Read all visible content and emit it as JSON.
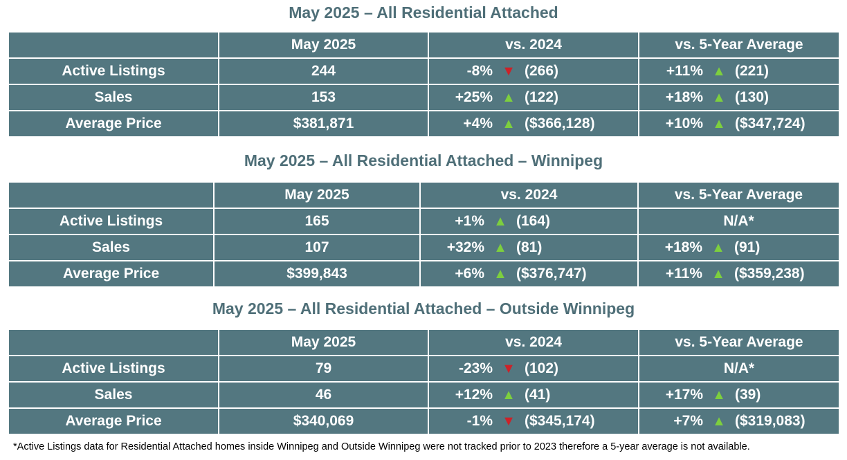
{
  "colors": {
    "up": "#7dcf3e",
    "down": "#cc2229",
    "cell": "#537780",
    "title": "#4f6f78"
  },
  "tables": [
    {
      "title": "May 2025 – All Residential Attached",
      "headers": [
        "",
        "May 2025",
        "vs. 2024",
        "vs. 5-Year Average"
      ],
      "rows": [
        {
          "label": "Active Listings",
          "value": "244",
          "y": {
            "pct": "-8%",
            "dir": "down",
            "prev": "(266)"
          },
          "avg": {
            "pct": "+11%",
            "dir": "up",
            "prev": "(221)"
          }
        },
        {
          "label": "Sales",
          "value": "153",
          "y": {
            "pct": "+25%",
            "dir": "up",
            "prev": "(122)"
          },
          "avg": {
            "pct": "+18%",
            "dir": "up",
            "prev": "(130)"
          }
        },
        {
          "label": "Average Price",
          "value": "$381,871",
          "y": {
            "pct": "+4%",
            "dir": "up",
            "prev": "($366,128)"
          },
          "avg": {
            "pct": "+10%",
            "dir": "up",
            "prev": "($347,724)"
          }
        }
      ]
    },
    {
      "title": "May 2025 – All Residential Attached – Winnipeg",
      "headers": [
        "",
        "May 2025",
        "vs. 2024",
        "vs. 5-Year Average"
      ],
      "rows": [
        {
          "label": "Active Listings",
          "value": "165",
          "y": {
            "pct": "+1%",
            "dir": "up",
            "prev": "(164)"
          },
          "avg": {
            "na": "N/A*"
          }
        },
        {
          "label": "Sales",
          "value": "107",
          "y": {
            "pct": "+32%",
            "dir": "up",
            "prev": "(81)"
          },
          "avg": {
            "pct": "+18%",
            "dir": "up",
            "prev": "(91)"
          }
        },
        {
          "label": "Average Price",
          "value": "$399,843",
          "y": {
            "pct": "+6%",
            "dir": "up",
            "prev": "($376,747)"
          },
          "avg": {
            "pct": "+11%",
            "dir": "up",
            "prev": "($359,238)"
          }
        }
      ]
    },
    {
      "title": "May 2025 – All Residential Attached – Outside Winnipeg",
      "headers": [
        "",
        "May 2025",
        "vs. 2024",
        "vs. 5-Year Average"
      ],
      "rows": [
        {
          "label": "Active Listings",
          "value": "79",
          "y": {
            "pct": "-23%",
            "dir": "down",
            "prev": "(102)"
          },
          "avg": {
            "na": "N/A*"
          }
        },
        {
          "label": "Sales",
          "value": "46",
          "y": {
            "pct": "+12%",
            "dir": "up",
            "prev": "(41)"
          },
          "avg": {
            "pct": "+17%",
            "dir": "up",
            "prev": "(39)"
          }
        },
        {
          "label": "Average Price",
          "value": "$340,069",
          "y": {
            "pct": "-1%",
            "dir": "down",
            "prev": "($345,174)"
          },
          "avg": {
            "pct": "+7%",
            "dir": "up",
            "prev": "($319,083)"
          }
        }
      ]
    }
  ],
  "footnote": "*Active Listings data for Residential Attached homes inside Winnipeg and Outside Winnipeg were not tracked prior to 2023 therefore a 5-year average is not available."
}
